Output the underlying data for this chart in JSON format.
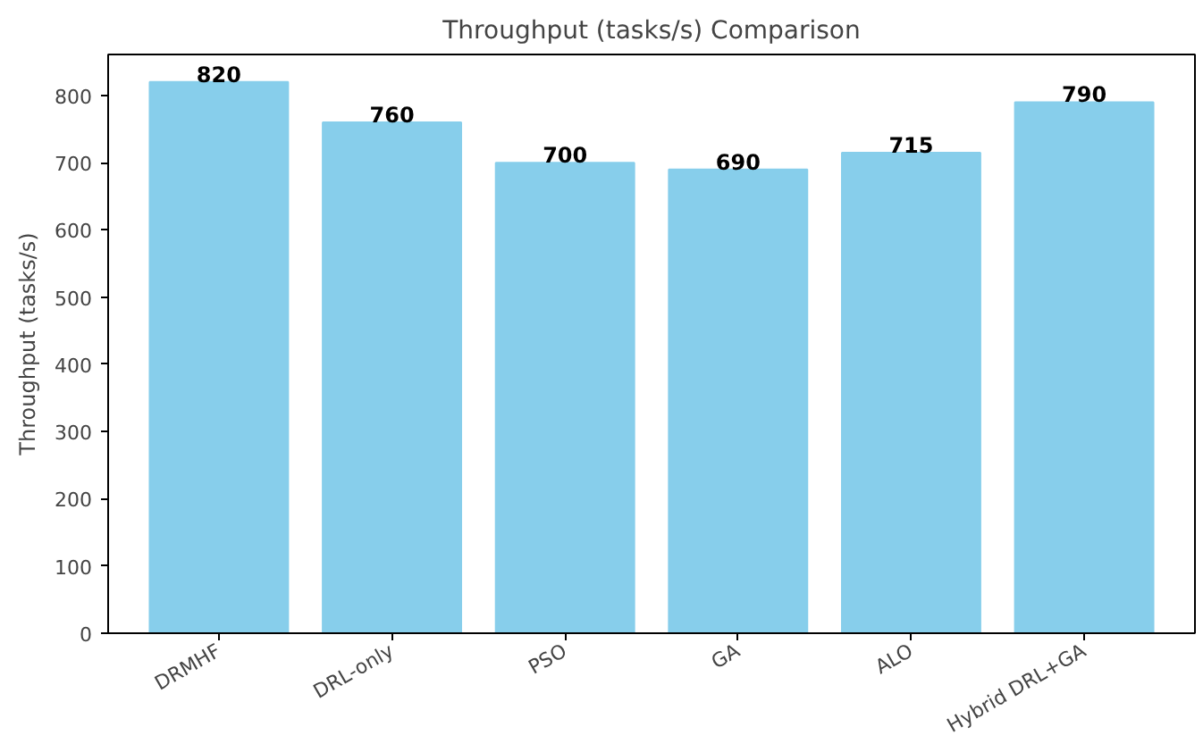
{
  "chart_data": {
    "type": "bar",
    "title": "Throughput (tasks/s) Comparison",
    "ylabel": "Throughput (tasks/s)",
    "categories": [
      "DRMHF",
      "DRL-only",
      "PSO",
      "GA",
      "ALO",
      "Hybrid DRL+GA"
    ],
    "values": [
      820,
      760,
      700,
      690,
      715,
      790
    ],
    "color": "#87ceeb",
    "ylim": [
      0,
      861
    ],
    "yticks": [
      0,
      100,
      200,
      300,
      400,
      500,
      600,
      700,
      800
    ],
    "grid": false,
    "data_labels": true
  }
}
